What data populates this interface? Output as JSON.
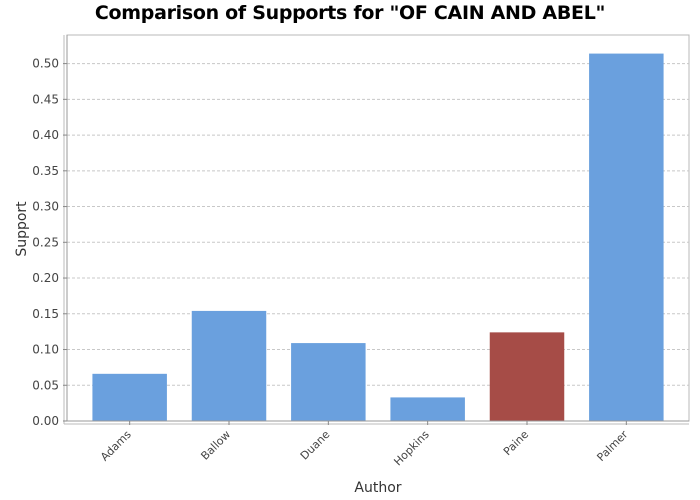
{
  "chart_data": {
    "type": "bar",
    "title": "Comparison of Supports for \"OF CAIN AND ABEL\"",
    "xlabel": "Author",
    "ylabel": "Support",
    "categories": [
      "Adams",
      "Ballow",
      "Duane",
      "Hopkins",
      "Paine",
      "Palmer"
    ],
    "values": [
      0.066,
      0.154,
      0.109,
      0.033,
      0.124,
      0.514
    ],
    "bar_colors": [
      "#6aa0de",
      "#6aa0de",
      "#6aa0de",
      "#6aa0de",
      "#a64c47",
      "#6aa0de"
    ],
    "ylim": [
      0,
      0.54
    ],
    "yticks": [
      "0.00",
      "0.05",
      "0.10",
      "0.15",
      "0.20",
      "0.25",
      "0.30",
      "0.35",
      "0.40",
      "0.45",
      "0.50"
    ],
    "grid": true,
    "legend": "none"
  }
}
